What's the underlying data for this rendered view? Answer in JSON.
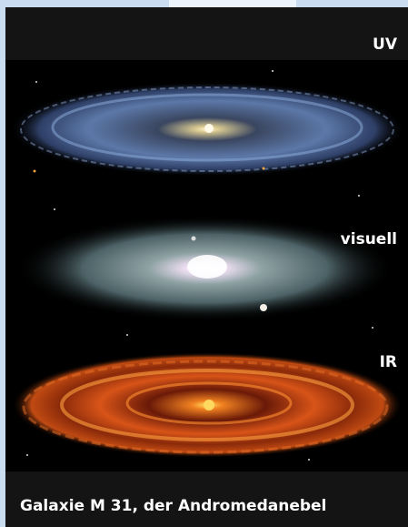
{
  "labels": {
    "uv": "UV",
    "visual": "visuell",
    "ir": "IR"
  },
  "caption": "Galaxie M 31, der Andromedanebel"
}
